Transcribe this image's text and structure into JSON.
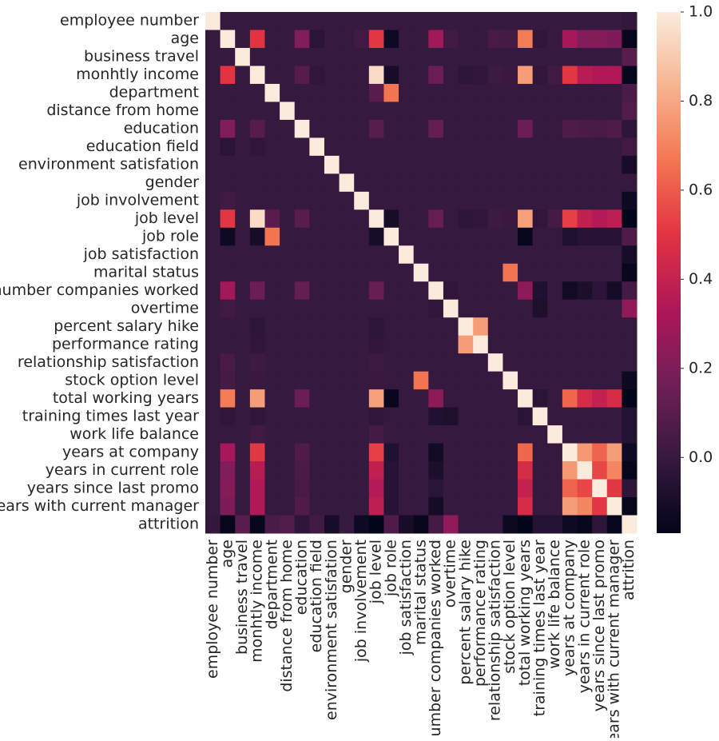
{
  "chart_data": {
    "type": "heatmap",
    "labels": [
      "employee number",
      "age",
      "business travel",
      "monhtly income",
      "department",
      "distance from home",
      "education",
      "education field",
      "environment satisfation",
      "gender",
      "job involvement",
      "job level",
      "job role",
      "job satisfaction",
      "marital status",
      "number companies worked",
      "overtime",
      "percent salary hike",
      "performance rating",
      "relationship satisfaction",
      "stock option level",
      "total working years",
      "training times last year",
      "work life balance",
      "years at company",
      "years in current role",
      "years since last promo",
      "years with current manager",
      "attrition"
    ],
    "z": [
      [
        1,
        0,
        0,
        0,
        0,
        0,
        0,
        0,
        0,
        0,
        0,
        0,
        0,
        0,
        0,
        0,
        0,
        0,
        0,
        0,
        0,
        0,
        0,
        0,
        0,
        0,
        0,
        0,
        -0.01
      ],
      [
        0,
        1,
        0,
        0.5,
        0,
        0,
        0.21,
        -0.04,
        0,
        0,
        0.03,
        0.51,
        -0.13,
        0,
        0,
        0.3,
        0.03,
        0,
        0,
        0.05,
        0.04,
        0.68,
        -0.02,
        0,
        0.31,
        0.21,
        0.22,
        0.2,
        -0.16
      ],
      [
        0,
        0,
        1,
        0,
        0,
        0,
        0,
        0,
        0,
        0,
        0,
        0,
        0,
        0,
        0,
        0,
        0,
        0,
        0,
        0,
        0,
        0,
        0,
        0,
        0,
        0,
        0,
        0,
        0.1
      ],
      [
        0,
        0.5,
        0,
        1,
        0,
        0,
        0.09,
        -0.02,
        0,
        0,
        0,
        0.95,
        -0.1,
        0,
        0,
        0.15,
        0,
        -0.03,
        -0.02,
        0.02,
        0.01,
        0.77,
        -0.02,
        0.03,
        0.51,
        0.36,
        0.34,
        0.34,
        -0.16
      ],
      [
        0,
        0,
        0,
        0,
        1,
        0,
        0,
        0,
        0,
        0,
        0,
        0.1,
        0.66,
        0,
        0,
        0,
        0,
        0,
        0,
        0,
        0,
        0,
        0,
        0,
        0,
        0,
        0,
        0,
        0.06
      ],
      [
        0,
        0,
        0,
        0,
        0,
        1,
        0,
        0,
        0,
        0,
        0,
        0,
        0,
        0,
        0,
        0,
        0,
        0,
        0,
        0,
        0,
        0,
        0,
        0,
        0,
        0,
        0,
        0,
        0.08
      ],
      [
        0,
        0.21,
        0,
        0.09,
        0,
        0,
        1,
        0,
        0,
        0,
        0,
        0.1,
        0,
        0,
        0,
        0.13,
        0,
        0,
        0,
        0,
        0,
        0.15,
        0,
        0,
        0.07,
        0.06,
        0.05,
        0.07,
        -0.03
      ],
      [
        0,
        -0.04,
        0,
        -0.02,
        0,
        0,
        0,
        1,
        0,
        0,
        0,
        0,
        0,
        0,
        0,
        0,
        0,
        0,
        0,
        0,
        0,
        0,
        0,
        0,
        0,
        0,
        0,
        0,
        0.03
      ],
      [
        0,
        0,
        0,
        0,
        0,
        0,
        0,
        0,
        1,
        0,
        0,
        0,
        0,
        0,
        0,
        0,
        0,
        0,
        0,
        0,
        0,
        0,
        0,
        0,
        0,
        0,
        0,
        0,
        -0.1
      ],
      [
        0,
        0,
        0,
        0,
        0,
        0,
        0,
        0,
        0,
        1,
        0,
        0,
        0,
        0,
        0,
        0,
        0,
        0,
        0,
        0,
        0,
        0,
        0,
        0,
        0,
        0,
        0,
        0,
        0
      ],
      [
        0,
        0.03,
        0,
        0,
        0,
        0,
        0,
        0,
        0,
        0,
        1,
        0,
        0,
        0,
        0,
        0,
        0,
        0,
        0,
        0,
        0,
        0,
        0,
        0,
        0,
        0,
        0,
        0,
        -0.13
      ],
      [
        0,
        0.51,
        0,
        0.95,
        0.1,
        0,
        0.1,
        0,
        0,
        0,
        0,
        1,
        -0.1,
        0,
        0,
        0.14,
        0,
        -0.03,
        -0.02,
        0.02,
        0.01,
        0.78,
        -0.02,
        0.04,
        0.53,
        0.39,
        0.35,
        0.38,
        -0.17
      ],
      [
        0,
        -0.13,
        0,
        -0.1,
        0.66,
        0,
        0,
        0,
        0,
        0,
        0,
        -0.1,
        1,
        0,
        0,
        0,
        0,
        0,
        0,
        0,
        0,
        -0.15,
        0,
        0,
        -0.07,
        -0.05,
        -0.05,
        -0.05,
        0.07
      ],
      [
        0,
        0,
        0,
        0,
        0,
        0,
        0,
        0,
        0,
        0,
        0,
        0,
        0,
        1,
        0,
        0,
        0,
        0,
        0,
        0,
        0,
        0,
        0,
        0,
        0,
        0,
        0,
        0,
        -0.1
      ],
      [
        0,
        0,
        0,
        0,
        0,
        0,
        0,
        0,
        0,
        0,
        0,
        0,
        0,
        0,
        1,
        0,
        0,
        0,
        0,
        0,
        0.66,
        0,
        0,
        0,
        0,
        0,
        0,
        0,
        -0.15
      ],
      [
        0,
        0.3,
        0,
        0.15,
        0,
        0,
        0.13,
        0,
        0,
        0,
        0,
        0.14,
        0,
        0,
        0,
        1,
        -0.02,
        0,
        0,
        0,
        0,
        0.24,
        -0.07,
        0,
        -0.12,
        -0.09,
        -0.04,
        -0.11,
        0.04
      ],
      [
        0,
        0.03,
        0,
        0,
        0,
        0,
        0,
        0,
        0,
        0,
        0,
        0,
        0,
        0,
        0,
        -0.02,
        1,
        0,
        0,
        0,
        0,
        0,
        -0.08,
        0,
        0,
        0,
        0,
        0,
        0.25
      ],
      [
        0,
        0,
        0,
        -0.03,
        0,
        0,
        0,
        0,
        0,
        0,
        0,
        -0.03,
        0,
        0,
        0,
        0,
        0,
        1,
        0.77,
        0,
        0,
        0,
        0,
        0,
        0,
        0,
        0,
        0,
        0
      ],
      [
        0,
        0,
        0,
        -0.02,
        0,
        0,
        0,
        0,
        0,
        0,
        0,
        -0.02,
        0,
        0,
        0,
        0,
        0,
        0.77,
        1,
        0,
        0,
        0,
        0,
        0,
        0,
        0,
        0,
        0,
        0
      ],
      [
        0,
        0.05,
        0,
        0.02,
        0,
        0,
        0,
        0,
        0,
        0,
        0,
        0.02,
        0,
        0,
        0,
        0,
        0,
        0,
        0,
        1,
        0,
        0,
        0,
        0,
        0,
        0,
        0,
        0,
        0
      ],
      [
        0,
        0.04,
        0,
        0.01,
        0,
        0,
        0,
        0,
        0,
        0,
        0,
        0.01,
        0,
        0,
        0.66,
        0,
        0,
        0,
        0,
        0,
        1,
        0,
        0,
        0,
        0,
        0,
        0,
        0,
        -0.14
      ],
      [
        0,
        0.68,
        0,
        0.77,
        0,
        0,
        0.15,
        0,
        0,
        0,
        0,
        0.78,
        -0.15,
        0,
        0,
        0.24,
        0,
        0,
        0,
        0,
        0,
        1,
        -0.04,
        0,
        0.63,
        0.46,
        0.4,
        0.46,
        -0.17
      ],
      [
        0,
        -0.02,
        0,
        -0.02,
        0,
        0,
        0,
        0,
        0,
        0,
        0,
        -0.02,
        0,
        0,
        0,
        -0.07,
        -0.08,
        0,
        0,
        0,
        0,
        -0.04,
        1,
        0,
        0,
        0,
        0,
        0,
        -0.06
      ],
      [
        0,
        0,
        0,
        0.03,
        0,
        0,
        0,
        0,
        0,
        0,
        0,
        0.04,
        0,
        0,
        0,
        0,
        0,
        0,
        0,
        0,
        0,
        0,
        0,
        1,
        0,
        0,
        0,
        0,
        -0.06
      ],
      [
        0,
        0.31,
        0,
        0.51,
        0,
        0,
        0.07,
        0,
        0,
        0,
        0,
        0.53,
        -0.07,
        0,
        0,
        -0.12,
        0,
        0,
        0,
        0,
        0,
        0.63,
        0,
        0,
        1,
        0.76,
        0.62,
        0.77,
        -0.13
      ],
      [
        0,
        0.21,
        0,
        0.36,
        0,
        0,
        0.06,
        0,
        0,
        0,
        0,
        0.39,
        -0.05,
        0,
        0,
        -0.09,
        0,
        0,
        0,
        0,
        0,
        0.46,
        0,
        0,
        0.76,
        1,
        0.55,
        0.71,
        -0.16
      ],
      [
        0,
        0.22,
        0,
        0.34,
        0,
        0,
        0.05,
        0,
        0,
        0,
        0,
        0.35,
        -0.05,
        0,
        0,
        -0.04,
        0,
        0,
        0,
        0,
        0,
        0.4,
        0,
        0,
        0.62,
        0.55,
        1,
        0.51,
        -0.03
      ],
      [
        0,
        0.2,
        0,
        0.34,
        0,
        0,
        0.07,
        0,
        0,
        0,
        0,
        0.38,
        -0.05,
        0,
        0,
        -0.11,
        0,
        0,
        0,
        0,
        0,
        0.46,
        0,
        0,
        0.77,
        0.71,
        0.51,
        1,
        -0.16
      ],
      [
        -0.01,
        -0.16,
        0.1,
        -0.16,
        0.06,
        0.08,
        -0.03,
        0.03,
        -0.1,
        0,
        -0.13,
        -0.17,
        0.07,
        -0.1,
        -0.15,
        0.04,
        0.25,
        0,
        0,
        0,
        -0.14,
        -0.17,
        -0.06,
        -0.06,
        -0.13,
        -0.16,
        -0.03,
        -0.16,
        1
      ]
    ],
    "zlim": [
      -0.17,
      1
    ],
    "colormap": [
      "#03051a",
      "#35193e",
      "#701f57",
      "#ae1759",
      "#e13342",
      "#f37651",
      "#f6b48f",
      "#faebdd"
    ],
    "colorbar_ticks": [
      {
        "value": 0,
        "label": "0.0"
      },
      0.2,
      0.4,
      0.6,
      0.8,
      {
        "value": 1,
        "label": "1.0"
      }
    ]
  }
}
